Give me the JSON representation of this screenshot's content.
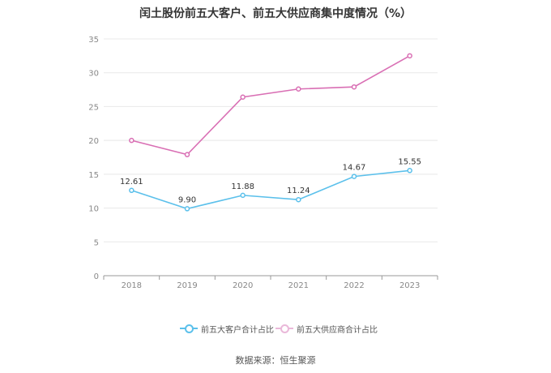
{
  "title": "闰土股份前五大客户、前五大供应商集中度情况（%）",
  "source": "数据来源：恒生聚源",
  "chart_data": {
    "type": "line",
    "title": "闰土股份前五大客户、前五大供应商集中度情况（%）",
    "x": [
      "2018",
      "2019",
      "2020",
      "2021",
      "2022",
      "2023"
    ],
    "ylim": [
      0,
      35
    ],
    "yticks": [
      0,
      5,
      10,
      15,
      20,
      25,
      30,
      35
    ],
    "grid": true,
    "legend_position": "bottom",
    "series": [
      {
        "name": "前五大客户合计占比",
        "values": [
          12.61,
          9.9,
          11.88,
          11.24,
          14.67,
          15.55
        ],
        "labels": [
          "12.61",
          "9.90",
          "11.88",
          "11.24",
          "14.67",
          "15.55"
        ],
        "color": "#5bc0eb"
      },
      {
        "name": "前五大供应商合计占比",
        "values": [
          20.0,
          17.9,
          26.4,
          27.6,
          27.9,
          32.5
        ],
        "color": "#d96fb4"
      }
    ]
  }
}
